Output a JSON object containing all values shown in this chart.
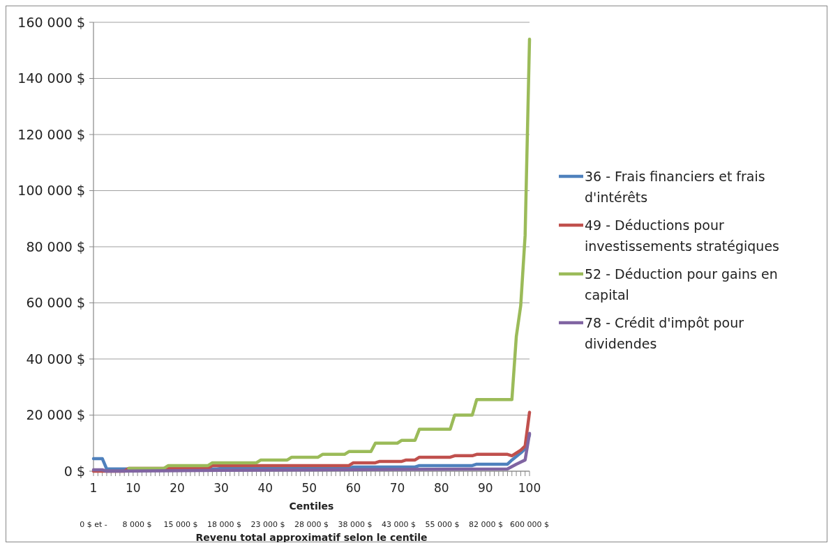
{
  "chart_data": {
    "type": "line",
    "xlabel": "Centiles",
    "x2label": "Revenu total approximatif selon le centile",
    "xlim": [
      1,
      100
    ],
    "xticks": [
      1,
      10,
      20,
      30,
      40,
      50,
      60,
      70,
      80,
      90,
      100
    ],
    "annotations": [
      "0 $ et -",
      "8 000 $",
      "15 000 $",
      "18 000 $",
      "23 000 $",
      "28 000 $",
      "38 000 $",
      "43 000 $",
      "55 000 $",
      "82 000 $",
      "600 000 $"
    ],
    "ylim": [
      0,
      160000
    ],
    "yticks": [
      {
        "value": 0,
        "label": "0 $"
      },
      {
        "value": 20000,
        "label": "20 000 $"
      },
      {
        "value": 40000,
        "label": "40 000 $"
      },
      {
        "value": 60000,
        "label": "60 000 $"
      },
      {
        "value": 80000,
        "label": "80 000 $"
      },
      {
        "value": 100000,
        "label": "100 000 $"
      },
      {
        "value": 120000,
        "label": "120 000 $"
      },
      {
        "value": 140000,
        "label": "140 000 $"
      },
      {
        "value": 160000,
        "label": "160 000 $"
      }
    ],
    "grid": "y",
    "legend": "right",
    "line_style": "solid",
    "marker": "none",
    "series": [
      {
        "name": "36 - Frais financiers et frais d'intérêts",
        "color": "#4f81bd",
        "x": [
          1,
          3,
          4,
          29,
          30,
          59,
          60,
          74,
          75,
          87,
          88,
          95,
          96,
          98,
          99,
          100
        ],
        "values": [
          4500,
          4500,
          800,
          800,
          1000,
          1000,
          1500,
          1500,
          2000,
          2000,
          2500,
          2500,
          4000,
          6500,
          8000,
          13000
        ]
      },
      {
        "name": "49 - Déductions pour investissements stratégiques",
        "color": "#c0504d",
        "x": [
          1,
          8,
          9,
          27,
          28,
          59,
          60,
          65,
          66,
          71,
          72,
          74,
          75,
          82,
          83,
          87,
          88,
          95,
          96,
          97,
          98,
          99,
          100
        ],
        "values": [
          0,
          0,
          1000,
          1000,
          2000,
          2000,
          3000,
          3000,
          3500,
          3500,
          4000,
          4000,
          5000,
          5000,
          5500,
          5500,
          6000,
          6000,
          5500,
          6500,
          7500,
          9000,
          21000
        ]
      },
      {
        "name": "52 - Déduction pour gains en capital",
        "color": "#9bbb59",
        "x": [
          9,
          17,
          18,
          27,
          28,
          38,
          39,
          45,
          46,
          52,
          53,
          58,
          59,
          64,
          65,
          70,
          71,
          74,
          75,
          82,
          83,
          87,
          88,
          96,
          97,
          98,
          99,
          100
        ],
        "values": [
          1000,
          1000,
          2000,
          2000,
          3000,
          3000,
          4000,
          4000,
          5000,
          5000,
          6000,
          6000,
          7000,
          7000,
          10000,
          10000,
          11000,
          11000,
          15000,
          15000,
          20000,
          20000,
          25500,
          25500,
          48000,
          59000,
          84000,
          154000
        ]
      },
      {
        "name": "78 - Crédit d'impôt pour dividendes",
        "color": "#8064a2",
        "x": [
          1,
          3,
          4,
          30,
          95,
          97,
          99,
          100
        ],
        "values": [
          500,
          500,
          0,
          300,
          800,
          2500,
          4000,
          13500
        ]
      }
    ]
  }
}
